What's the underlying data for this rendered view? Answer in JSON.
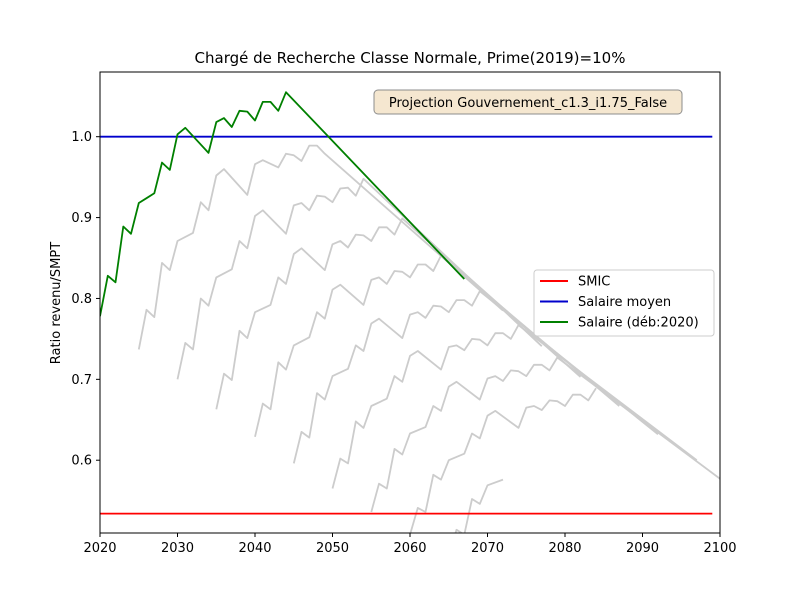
{
  "chart_data": {
    "type": "line",
    "title": "Chargé de Recherche Classe Normale, Prime(2019)=10%",
    "xlabel": "",
    "ylabel": "Ratio revenu/SMPT",
    "xlim": [
      2020,
      2100
    ],
    "ylim": [
      0.51,
      1.08
    ],
    "xticks": [
      2020,
      2030,
      2040,
      2050,
      2060,
      2070,
      2080,
      2090,
      2100
    ],
    "yticks": [
      0.6,
      0.7,
      0.8,
      0.9,
      1.0
    ],
    "annotation": "Projection Gouvernement_c1.3_i1.75_False",
    "legend_position": "center-right",
    "grid": false,
    "colors": {
      "smic": "#ff0000",
      "moyen": "#0000cc",
      "salaire": "#008000",
      "cohorts": "#cccccc"
    },
    "series": [
      {
        "name": "SMIC",
        "x": [
          2020,
          2099
        ],
        "values": [
          0.534,
          0.534
        ]
      },
      {
        "name": "Salaire moyen",
        "x": [
          2020,
          2099
        ],
        "values": [
          1.0,
          1.0
        ]
      },
      {
        "name": "Salaire (déb:2020)",
        "x": [
          2020,
          2021,
          2022,
          2023,
          2024,
          2025,
          2026,
          2027,
          2028,
          2029,
          2030,
          2031,
          2034,
          2035,
          2036,
          2037,
          2038,
          2039,
          2040,
          2041,
          2042,
          2043,
          2044,
          2067
        ],
        "values": [
          0.778,
          0.828,
          0.82,
          0.889,
          0.88,
          0.918,
          0.924,
          0.93,
          0.968,
          0.959,
          1.003,
          1.011,
          0.98,
          1.018,
          1.023,
          1.012,
          1.032,
          1.031,
          1.02,
          1.043,
          1.043,
          1.032,
          1.055,
          0.824
        ]
      }
    ],
    "cohorts": [
      {
        "start": 2025,
        "x": [
          2025,
          2026,
          2027,
          2028,
          2029,
          2030,
          2032,
          2033,
          2034,
          2035,
          2036,
          2039,
          2040,
          2041,
          2043,
          2044,
          2045,
          2046,
          2047,
          2048,
          2049,
          2072
        ],
        "values": [
          0.737,
          0.786,
          0.777,
          0.844,
          0.835,
          0.871,
          0.881,
          0.919,
          0.909,
          0.952,
          0.96,
          0.928,
          0.966,
          0.971,
          0.962,
          0.979,
          0.977,
          0.97,
          0.989,
          0.989,
          0.979,
          0.785
        ]
      },
      {
        "start": 2030,
        "x": [
          2030,
          2031,
          2032,
          2033,
          2034,
          2035,
          2037,
          2038,
          2039,
          2040,
          2041,
          2044,
          2045,
          2046,
          2047,
          2048,
          2049,
          2050,
          2051,
          2052,
          2053,
          2054,
          2077
        ],
        "values": [
          0.7,
          0.745,
          0.737,
          0.8,
          0.791,
          0.826,
          0.836,
          0.871,
          0.862,
          0.902,
          0.909,
          0.88,
          0.915,
          0.918,
          0.909,
          0.927,
          0.926,
          0.919,
          0.936,
          0.937,
          0.927,
          0.948,
          0.741
        ]
      },
      {
        "start": 2035,
        "x": [
          2035,
          2036,
          2037,
          2038,
          2039,
          2040,
          2042,
          2043,
          2044,
          2045,
          2046,
          2049,
          2050,
          2051,
          2052,
          2053,
          2054,
          2055,
          2056,
          2057,
          2058,
          2059,
          2082
        ],
        "values": [
          0.663,
          0.707,
          0.699,
          0.76,
          0.751,
          0.783,
          0.792,
          0.826,
          0.818,
          0.855,
          0.862,
          0.835,
          0.867,
          0.871,
          0.863,
          0.879,
          0.878,
          0.871,
          0.888,
          0.888,
          0.879,
          0.899,
          0.703
        ]
      },
      {
        "start": 2040,
        "x": [
          2040,
          2041,
          2042,
          2043,
          2044,
          2045,
          2047,
          2048,
          2049,
          2050,
          2051,
          2054,
          2055,
          2056,
          2057,
          2058,
          2059,
          2060,
          2061,
          2062,
          2063,
          2064,
          2087
        ],
        "values": [
          0.629,
          0.67,
          0.663,
          0.721,
          0.712,
          0.742,
          0.752,
          0.783,
          0.775,
          0.811,
          0.817,
          0.792,
          0.823,
          0.826,
          0.818,
          0.834,
          0.833,
          0.826,
          0.842,
          0.842,
          0.834,
          0.853,
          0.667
        ]
      },
      {
        "start": 2045,
        "x": [
          2045,
          2046,
          2047,
          2048,
          2049,
          2050,
          2052,
          2053,
          2054,
          2055,
          2056,
          2059,
          2060,
          2061,
          2062,
          2063,
          2064,
          2065,
          2066,
          2067,
          2068,
          2069,
          2092
        ],
        "values": [
          0.596,
          0.635,
          0.628,
          0.683,
          0.675,
          0.704,
          0.713,
          0.742,
          0.735,
          0.769,
          0.775,
          0.751,
          0.78,
          0.783,
          0.776,
          0.791,
          0.79,
          0.783,
          0.798,
          0.798,
          0.791,
          0.809,
          0.632
        ]
      },
      {
        "start": 2050,
        "x": [
          2050,
          2051,
          2052,
          2053,
          2054,
          2055,
          2057,
          2058,
          2059,
          2060,
          2061,
          2064,
          2065,
          2066,
          2067,
          2068,
          2069,
          2070,
          2071,
          2072,
          2073,
          2074,
          2097
        ],
        "values": [
          0.565,
          0.602,
          0.596,
          0.648,
          0.64,
          0.667,
          0.676,
          0.704,
          0.697,
          0.729,
          0.735,
          0.712,
          0.74,
          0.742,
          0.736,
          0.75,
          0.749,
          0.742,
          0.757,
          0.757,
          0.75,
          0.767,
          0.6
        ]
      },
      {
        "start": 2055,
        "x": [
          2055,
          2056,
          2057,
          2058,
          2059,
          2060,
          2062,
          2063,
          2064,
          2065,
          2066,
          2069,
          2070,
          2071,
          2072,
          2073,
          2074,
          2075,
          2076,
          2077,
          2078,
          2079,
          2100
        ],
        "values": [
          0.536,
          0.571,
          0.565,
          0.614,
          0.607,
          0.633,
          0.641,
          0.667,
          0.661,
          0.691,
          0.697,
          0.675,
          0.701,
          0.704,
          0.698,
          0.711,
          0.71,
          0.704,
          0.718,
          0.718,
          0.711,
          0.727,
          0.577
        ]
      },
      {
        "start": 2060,
        "x": [
          2060,
          2061,
          2062,
          2063,
          2064,
          2065,
          2067,
          2068,
          2069,
          2070,
          2071,
          2074,
          2075,
          2076,
          2077,
          2078,
          2079,
          2080,
          2081,
          2082,
          2083,
          2084
        ],
        "values": [
          0.508,
          0.541,
          0.536,
          0.582,
          0.576,
          0.6,
          0.608,
          0.633,
          0.627,
          0.655,
          0.661,
          0.64,
          0.665,
          0.667,
          0.662,
          0.674,
          0.673,
          0.667,
          0.681,
          0.681,
          0.674,
          0.689
        ]
      },
      {
        "start": 2065,
        "x": [
          2065,
          2066,
          2067,
          2068,
          2069,
          2070,
          2072
        ],
        "values": [
          0.482,
          0.514,
          0.508,
          0.552,
          0.546,
          0.569,
          0.576
        ]
      }
    ]
  }
}
